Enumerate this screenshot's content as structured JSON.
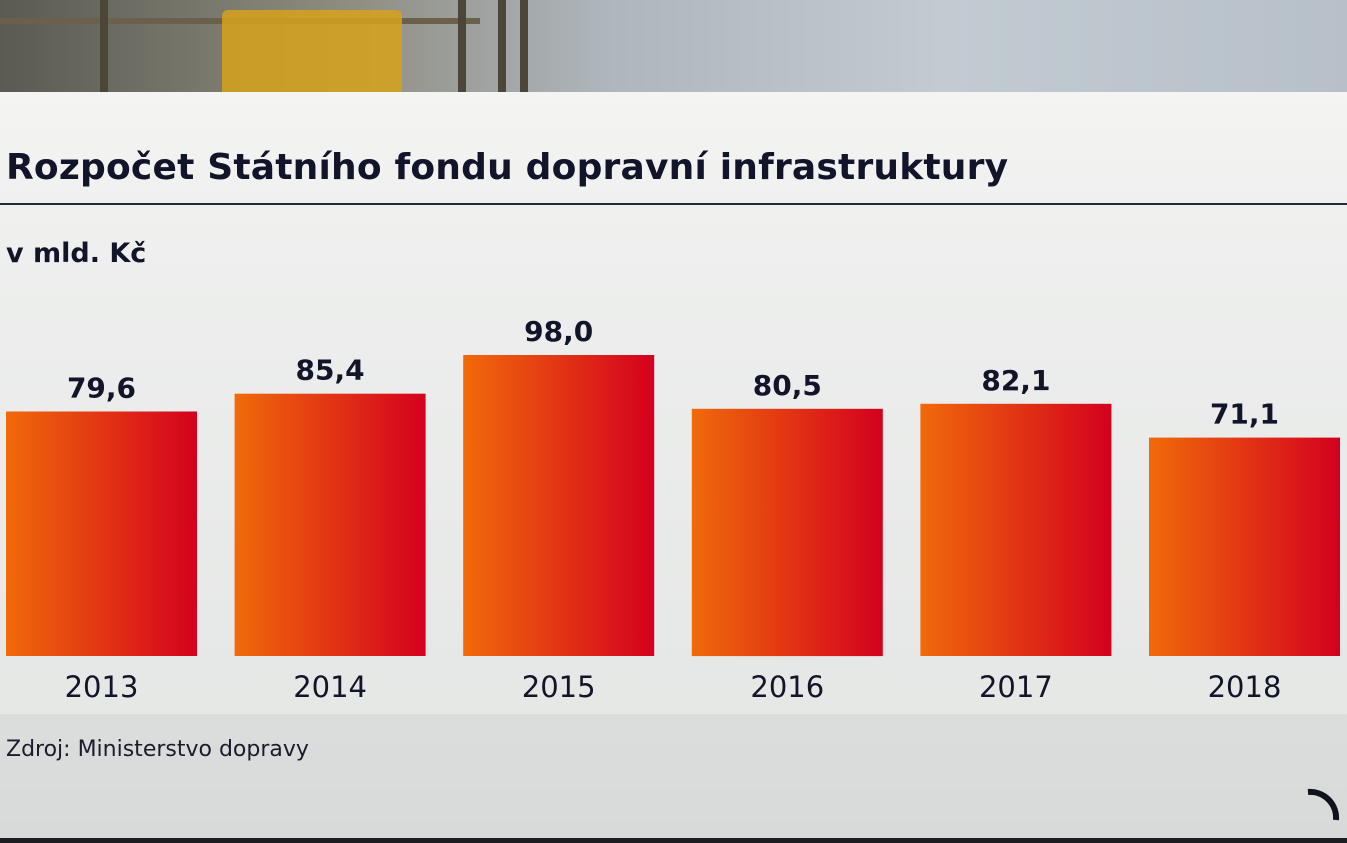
{
  "title": "Rozpočet Státního fondu dopravní infrastruktury",
  "unit_label": "v mld. Kč",
  "source": "Zdroj: Ministerstvo dopravy",
  "colors": {
    "bar_start": "#f06a0a",
    "bar_end": "#d4001e",
    "text": "#12142a",
    "rule": "#23283f"
  },
  "logo_icon": "broadcaster-logo-icon",
  "chart_data": {
    "type": "bar",
    "categories": [
      "2013",
      "2014",
      "2015",
      "2016",
      "2017",
      "2018"
    ],
    "values": [
      79.6,
      85.4,
      98.0,
      80.5,
      82.1,
      71.1
    ],
    "value_labels": [
      "79,6",
      "85,4",
      "98,0",
      "80,5",
      "82,1",
      "71,1"
    ],
    "title": "Rozpočet Státního fondu dopravní infrastruktury",
    "ylabel": "v mld. Kč",
    "ylim": [
      0,
      98.0
    ],
    "grid": false,
    "legend": "none"
  }
}
